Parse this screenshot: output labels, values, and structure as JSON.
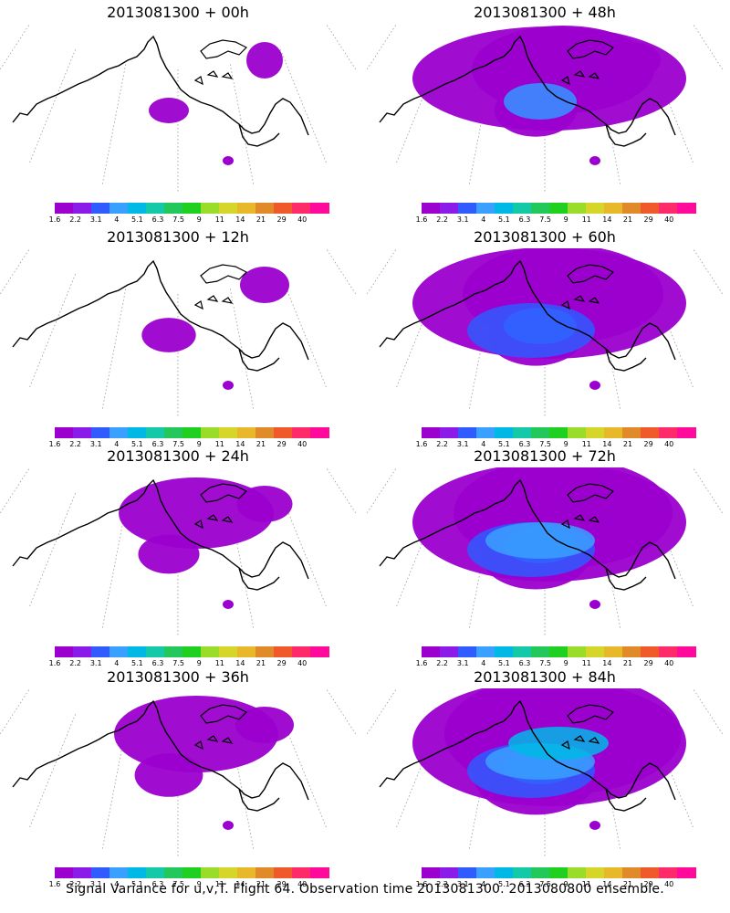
{
  "panels": [
    {
      "title": "2013081300 + 00h",
      "signal": 0
    },
    {
      "title": "2013081300 + 48h",
      "signal": 3
    },
    {
      "title": "2013081300 + 12h",
      "signal": 1
    },
    {
      "title": "2013081300 + 60h",
      "signal": 4
    },
    {
      "title": "2013081300 + 24h",
      "signal": 1.5
    },
    {
      "title": "2013081300 + 72h",
      "signal": 5
    },
    {
      "title": "2013081300 + 36h",
      "signal": 2
    },
    {
      "title": "2013081300 + 84h",
      "signal": 6
    }
  ],
  "colorbar": {
    "colors": [
      "#9b00cf",
      "#8a1be8",
      "#2f5bff",
      "#3aa0ff",
      "#00b8e6",
      "#13c9a8",
      "#22c95a",
      "#20d020",
      "#9adc2a",
      "#d6d62a",
      "#e6b82a",
      "#e08a2a",
      "#f05a2a",
      "#ff2a6a",
      "#ff0a9a"
    ],
    "labels": [
      "1.6",
      "2.2",
      "3.1",
      "4",
      "5.1",
      "6.3",
      "7.5",
      "9",
      "11",
      "14",
      "21",
      "29",
      "40"
    ]
  },
  "footer": "Signal Variance for u,v,T. Flight 64. Observation time 2013081300. 2013080800 ensemble."
}
